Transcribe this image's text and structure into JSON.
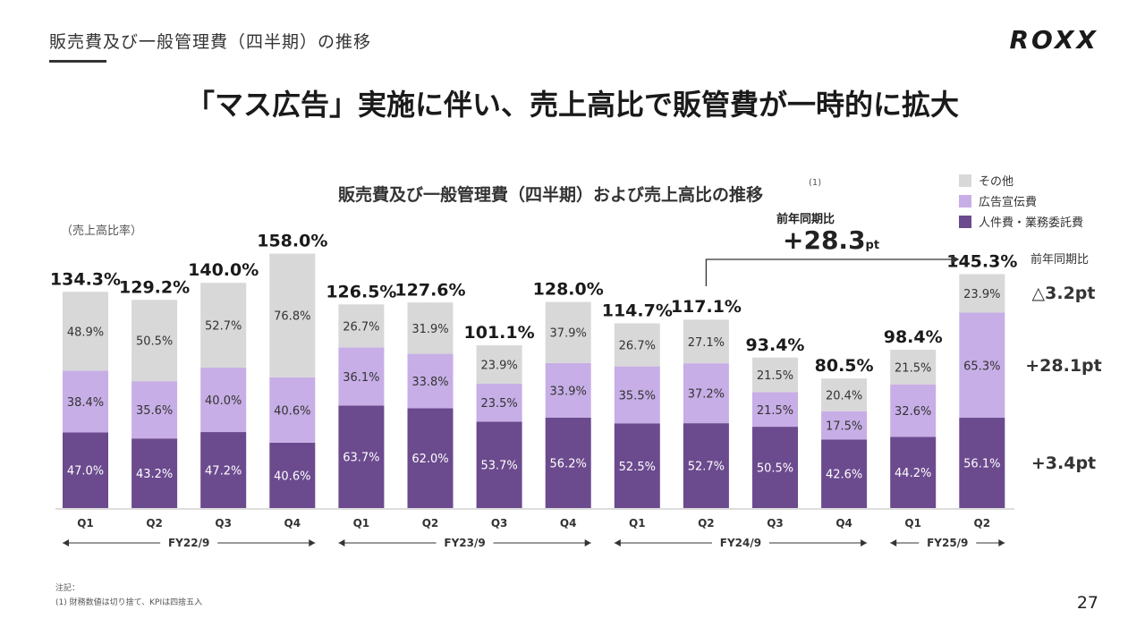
{
  "header": {
    "section_title": "販売費及び一般管理費（四半期）の推移",
    "logo": "ROXX",
    "headline": "「マス広告」実施に伴い、売上高比で販管費が一時的に拡大"
  },
  "chart_header": {
    "title": "販売費及び一般管理費（四半期）および売上高比の推移",
    "title_note": "(1)",
    "ratio_caption": "（売上高比率）",
    "yoy_label": "前年同期比",
    "yoy_value": "+28.3",
    "yoy_unit": "pt"
  },
  "legend": [
    {
      "label": "その他",
      "color": "#d8d8d8"
    },
    {
      "label": "広告宣伝費",
      "color": "#c7aee6"
    },
    {
      "label": "人件費・業務委託費",
      "color": "#6b4a8e"
    }
  ],
  "yoy_breakdown": {
    "header": "前年同期比",
    "other": "△3.2pt",
    "advertising": "+28.1pt",
    "personnel": "+3.4pt"
  },
  "chart_data": {
    "type": "bar",
    "stacked": true,
    "categories": [
      "Q1",
      "Q2",
      "Q3",
      "Q4",
      "Q1",
      "Q2",
      "Q3",
      "Q4",
      "Q1",
      "Q2",
      "Q3",
      "Q4",
      "Q1",
      "Q2"
    ],
    "fiscal_years": [
      {
        "label": "FY22/9",
        "quarters": 4
      },
      {
        "label": "FY23/9",
        "quarters": 4
      },
      {
        "label": "FY24/9",
        "quarters": 4
      },
      {
        "label": "FY25/9",
        "quarters": 2
      }
    ],
    "totals": [
      "134.3%",
      "129.2%",
      "140.0%",
      "158.0%",
      "126.5%",
      "127.6%",
      "101.1%",
      "128.0%",
      "114.7%",
      "117.1%",
      "93.4%",
      "80.5%",
      "98.4%",
      "145.3%"
    ],
    "total_values": [
      134.3,
      129.2,
      140.0,
      158.0,
      126.5,
      127.6,
      101.1,
      128.0,
      114.7,
      117.1,
      93.4,
      80.5,
      98.4,
      145.3
    ],
    "series": [
      {
        "name": "人件費・業務委託費",
        "color": "#6b4a8e",
        "values": [
          47.0,
          43.2,
          47.2,
          40.6,
          63.7,
          62.0,
          53.7,
          56.2,
          52.5,
          52.7,
          50.5,
          42.6,
          44.2,
          56.1
        ],
        "labels": [
          "47.0%",
          "43.2%",
          "47.2%",
          "40.6%",
          "63.7%",
          "62.0%",
          "53.7%",
          "56.2%",
          "52.5%",
          "52.7%",
          "50.5%",
          "42.6%",
          "44.2%",
          "56.1%"
        ]
      },
      {
        "name": "広告宣伝費",
        "color": "#c7aee6",
        "values": [
          38.4,
          35.6,
          40.0,
          40.6,
          36.1,
          33.8,
          23.5,
          33.9,
          35.5,
          37.2,
          21.5,
          17.5,
          32.6,
          65.3
        ],
        "labels": [
          "38.4%",
          "35.6%",
          "40.0%",
          "40.6%",
          "36.1%",
          "33.8%",
          "23.5%",
          "33.9%",
          "35.5%",
          "37.2%",
          "21.5%",
          "17.5%",
          "32.6%",
          "65.3%"
        ]
      },
      {
        "name": "その他",
        "color": "#d8d8d8",
        "values": [
          48.9,
          50.5,
          52.7,
          76.8,
          26.7,
          31.9,
          23.9,
          37.9,
          26.7,
          27.1,
          21.5,
          20.4,
          21.5,
          23.9
        ],
        "labels": [
          "48.9%",
          "50.5%",
          "52.7%",
          "76.8%",
          "26.7%",
          "31.9%",
          "23.9%",
          "37.9%",
          "26.7%",
          "27.1%",
          "21.5%",
          "20.4%",
          "21.5%",
          "23.9%"
        ]
      }
    ],
    "ylim": [
      0,
      158
    ]
  },
  "footnotes": {
    "heading": "注記：",
    "note1": "(1) 財務数値は切り捨て、KPIは四捨五入"
  },
  "page_number": "27"
}
